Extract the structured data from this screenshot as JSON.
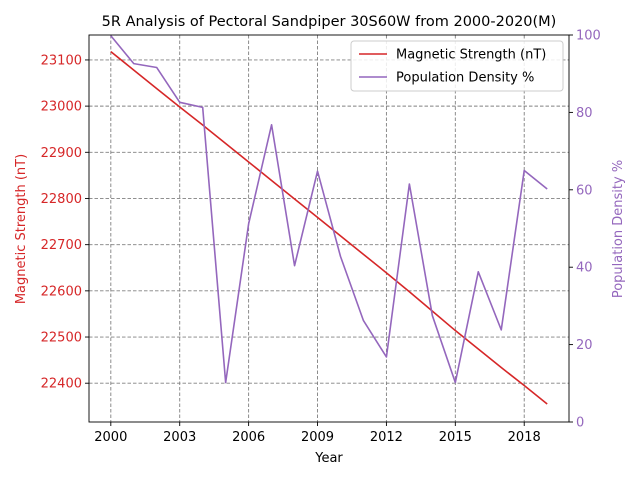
{
  "chart_data": {
    "type": "line",
    "title": "5R Analysis of Pectoral Sandpiper 30S60W from 2000-2020(M)",
    "xlabel": "Year",
    "ylabel_left": "Magnetic Strength (nT)",
    "ylabel_right": "Population Density %",
    "xlim": [
      1999.05,
      2019.95
    ],
    "ylim_left": [
      22316,
      23154
    ],
    "ylim_right": [
      0,
      100
    ],
    "x_ticks": [
      2000,
      2003,
      2006,
      2009,
      2012,
      2015,
      2018
    ],
    "y_left_ticks": [
      22400,
      22500,
      22600,
      22700,
      22800,
      22900,
      23000,
      23100
    ],
    "y_right_ticks": [
      0,
      20,
      40,
      60,
      80,
      100
    ],
    "grid": true,
    "legend_position": "upper-right",
    "x": [
      2000,
      2001,
      2002,
      2003,
      2004,
      2005,
      2006,
      2007,
      2008,
      2009,
      2010,
      2011,
      2012,
      2013,
      2014,
      2015,
      2016,
      2017,
      2018,
      2019
    ],
    "series": [
      {
        "name": "Magnetic Strength (nT)",
        "axis": "left",
        "color": "#d62728",
        "values": [
          23118,
          23078,
          23038,
          22998,
          22959,
          22919,
          22879,
          22839,
          22799,
          22759,
          22719,
          22679,
          22639,
          22598,
          22556,
          22514,
          22474,
          22434,
          22395,
          22355
        ]
      },
      {
        "name": "Population Density %",
        "axis": "right",
        "color": "#9467bd",
        "values": [
          99.8,
          92.6,
          91.6,
          82.6,
          81.3,
          10.2,
          51.2,
          76.8,
          40.4,
          64.8,
          42.8,
          26.2,
          16.8,
          61.5,
          27.5,
          10.2,
          38.8,
          23.8,
          65.0,
          60.2
        ]
      }
    ]
  },
  "colors": {
    "left_axis": "#d62728",
    "right_axis": "#9467bd",
    "grid": "#808080",
    "text": "#000000"
  }
}
